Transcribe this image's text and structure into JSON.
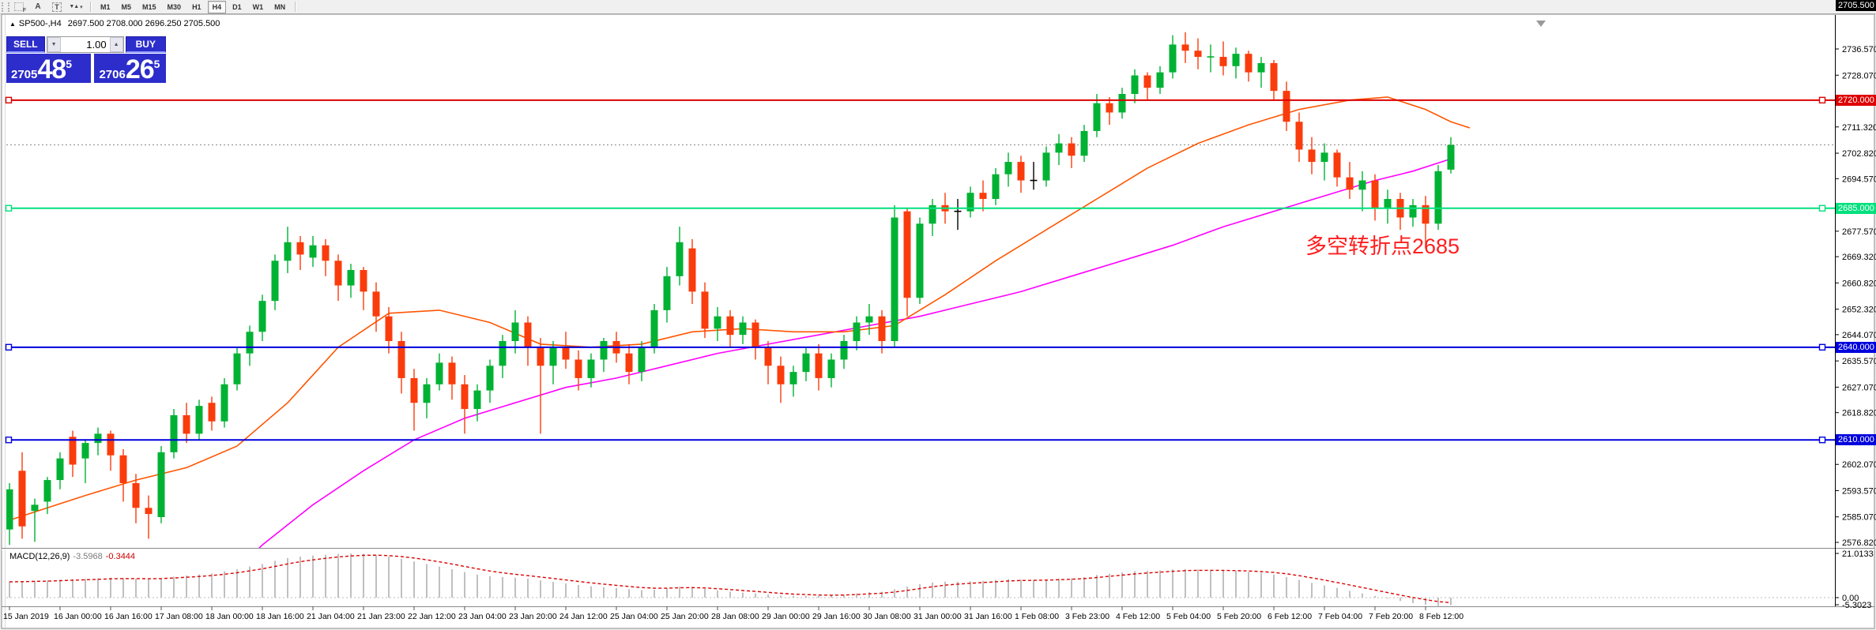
{
  "toolbar": {
    "tools": [
      {
        "name": "fibonacci-tool",
        "label": "F"
      },
      {
        "name": "text-tool",
        "label": "A"
      },
      {
        "name": "text-label-tool",
        "label": "T"
      },
      {
        "name": "arrows-tool",
        "label": "▼▲"
      }
    ],
    "timeframes": [
      "M1",
      "M5",
      "M15",
      "M30",
      "H1",
      "H4",
      "D1",
      "W1",
      "MN"
    ],
    "active_timeframe": "H4"
  },
  "chart_header": {
    "symbol": "SP500-,H4",
    "ohlc": "2697.500 2708.000 2696.250 2705.500",
    "marker_glyph": "▲"
  },
  "trade_panel": {
    "sell_label": "SELL",
    "buy_label": "BUY",
    "lot": "1.00",
    "spinner_down_glyph": "▼",
    "spinner_up_glyph": "▲",
    "sell": {
      "small": "2705",
      "big": "48",
      "sup": "5"
    },
    "buy": {
      "small": "2706",
      "big": "26",
      "sup": "5"
    }
  },
  "annotation": {
    "text": "多空转折点2685",
    "color": "#ff1f1f"
  },
  "macd_panel": {
    "label": "MACD(12,26,9)",
    "value_main": "-3.5968",
    "value_signal": "-0.3444",
    "scale_labels": [
      "21.0133",
      "0.00",
      "-5.3023"
    ]
  },
  "current_price": {
    "value": 2705.5,
    "label": "2705.500"
  },
  "y_axis": {
    "ticks": [
      "2736.570",
      "2728.070",
      "2711.320",
      "2702.820",
      "2694.570",
      "2677.570",
      "2669.320",
      "2660.820",
      "2652.320",
      "2644.070",
      "2635.570",
      "2627.070",
      "2618.820",
      "2602.070",
      "2593.570",
      "2585.070",
      "2576.820"
    ]
  },
  "x_axis": {
    "labels": [
      "15 Jan 2019",
      "16 Jan 00:00",
      "16 Jan 16:00",
      "17 Jan 08:00",
      "18 Jan 00:00",
      "18 Jan 16:00",
      "21 Jan 04:00",
      "21 Jan 23:00",
      "22 Jan 12:00",
      "23 Jan 04:00",
      "23 Jan 20:00",
      "24 Jan 12:00",
      "25 Jan 04:00",
      "25 Jan 20:00",
      "28 Jan 08:00",
      "29 Jan 00:00",
      "29 Jan 16:00",
      "30 Jan 08:00",
      "31 Jan 00:00",
      "31 Jan 16:00",
      "1 Feb 08:00",
      "3 Feb 23:00",
      "4 Feb 12:00",
      "5 Feb 04:00",
      "5 Feb 20:00",
      "6 Feb 12:00",
      "7 Feb 04:00",
      "7 Feb 20:00",
      "8 Feb 12:00"
    ]
  },
  "colors": {
    "candle_up": "#00b233",
    "candle_down": "#fa3c0c",
    "doji_black": "#000000",
    "ma_fast": "#ff5500",
    "ma_slow": "#ff00ff",
    "level_red": "#dd0000",
    "level_green": "#00e07d",
    "level_blue": "#0000dd",
    "macd_hist": "#c0c0c0",
    "macd_signal": "#dd0000",
    "current_line": "#888888",
    "panel_blue": "#2d2dcb"
  },
  "chart_data": {
    "type": "candlestick",
    "symbol": "SP500-,H4",
    "timeframe": "H4",
    "y_range": [
      2576.82,
      2736.57
    ],
    "macd_range": [
      -5.3023,
      21.0133
    ],
    "levels": [
      {
        "price": 2720,
        "label": "2720.000",
        "color": "#dd0000"
      },
      {
        "price": 2685,
        "label": "2685.000",
        "color": "#00e07d"
      },
      {
        "price": 2640,
        "label": "2640.000",
        "color": "#0000dd"
      },
      {
        "price": 2610,
        "label": "2610.000",
        "color": "#0000dd"
      }
    ],
    "doji_black": [
      75,
      81
    ],
    "candles": [
      [
        2581,
        2596,
        2576,
        2594
      ],
      [
        2600,
        2606,
        2578,
        2582
      ],
      [
        2587,
        2591,
        2577,
        2589
      ],
      [
        2590,
        2598,
        2586,
        2597
      ],
      [
        2597,
        2606,
        2594,
        2604
      ],
      [
        2611,
        2613,
        2598,
        2602
      ],
      [
        2604,
        2610,
        2596,
        2609
      ],
      [
        2609,
        2614,
        2605,
        2612
      ],
      [
        2612,
        2613,
        2600,
        2605
      ],
      [
        2605,
        2607,
        2590,
        2596
      ],
      [
        2596,
        2599,
        2583,
        2588
      ],
      [
        2588,
        2592,
        2578,
        2586
      ],
      [
        2585,
        2608,
        2583,
        2606
      ],
      [
        2606,
        2620,
        2604,
        2618
      ],
      [
        2618,
        2622,
        2609,
        2612
      ],
      [
        2612,
        2623,
        2610,
        2621
      ],
      [
        2622,
        2624,
        2613,
        2616
      ],
      [
        2616,
        2630,
        2614,
        2628
      ],
      [
        2628,
        2640,
        2626,
        2638
      ],
      [
        2638,
        2647,
        2634,
        2645
      ],
      [
        2645,
        2657,
        2642,
        2655
      ],
      [
        2655,
        2670,
        2652,
        2668
      ],
      [
        2668,
        2679,
        2664,
        2674
      ],
      [
        2674,
        2676,
        2665,
        2670
      ],
      [
        2669,
        2676,
        2666,
        2673
      ],
      [
        2673,
        2675,
        2663,
        2668
      ],
      [
        2668,
        2670,
        2655,
        2660
      ],
      [
        2660,
        2667,
        2656,
        2665
      ],
      [
        2665,
        2666,
        2652,
        2658
      ],
      [
        2658,
        2661,
        2645,
        2650
      ],
      [
        2650,
        2653,
        2638,
        2642
      ],
      [
        2642,
        2645,
        2625,
        2630
      ],
      [
        2630,
        2633,
        2613,
        2622
      ],
      [
        2622,
        2630,
        2617,
        2628
      ],
      [
        2628,
        2638,
        2626,
        2635
      ],
      [
        2635,
        2637,
        2623,
        2628
      ],
      [
        2628,
        2631,
        2612,
        2620
      ],
      [
        2620,
        2628,
        2616,
        2626
      ],
      [
        2626,
        2636,
        2622,
        2634
      ],
      [
        2634,
        2644,
        2630,
        2642
      ],
      [
        2642,
        2652,
        2638,
        2648
      ],
      [
        2648,
        2650,
        2634,
        2640
      ],
      [
        2640,
        2643,
        2612,
        2634
      ],
      [
        2634,
        2642,
        2628,
        2640
      ],
      [
        2640,
        2645,
        2633,
        2636
      ],
      [
        2636,
        2639,
        2626,
        2630
      ],
      [
        2630,
        2638,
        2627,
        2636
      ],
      [
        2636,
        2643,
        2632,
        2642
      ],
      [
        2642,
        2645,
        2635,
        2638
      ],
      [
        2638,
        2641,
        2628,
        2632
      ],
      [
        2632,
        2642,
        2629,
        2640
      ],
      [
        2640,
        2654,
        2638,
        2652
      ],
      [
        2652,
        2666,
        2648,
        2663
      ],
      [
        2663,
        2679,
        2660,
        2674
      ],
      [
        2672,
        2675,
        2654,
        2658
      ],
      [
        2658,
        2661,
        2643,
        2646
      ],
      [
        2646,
        2653,
        2642,
        2650
      ],
      [
        2650,
        2652,
        2640,
        2644
      ],
      [
        2644,
        2650,
        2641,
        2648
      ],
      [
        2648,
        2649,
        2636,
        2640
      ],
      [
        2640,
        2642,
        2628,
        2634
      ],
      [
        2634,
        2637,
        2622,
        2628
      ],
      [
        2628,
        2634,
        2624,
        2632
      ],
      [
        2632,
        2640,
        2629,
        2638
      ],
      [
        2638,
        2641,
        2626,
        2630
      ],
      [
        2630,
        2638,
        2627,
        2636
      ],
      [
        2636,
        2644,
        2633,
        2642
      ],
      [
        2642,
        2650,
        2639,
        2648
      ],
      [
        2648,
        2654,
        2644,
        2650
      ],
      [
        2650,
        2652,
        2638,
        2642
      ],
      [
        2642,
        2686,
        2640,
        2682
      ],
      [
        2684,
        2685,
        2650,
        2656
      ],
      [
        2656,
        2682,
        2654,
        2680
      ],
      [
        2680,
        2688,
        2676,
        2686
      ],
      [
        2686,
        2690,
        2680,
        2684
      ],
      [
        2684,
        2688,
        2678,
        2684
      ],
      [
        2684,
        2692,
        2682,
        2690
      ],
      [
        2690,
        2694,
        2684,
        2688
      ],
      [
        2688,
        2698,
        2686,
        2696
      ],
      [
        2696,
        2703,
        2692,
        2700
      ],
      [
        2700,
        2702,
        2690,
        2694
      ],
      [
        2694,
        2700,
        2691,
        2694
      ],
      [
        2694,
        2705,
        2692,
        2703
      ],
      [
        2703,
        2709,
        2699,
        2706
      ],
      [
        2706,
        2708,
        2698,
        2702
      ],
      [
        2702,
        2712,
        2700,
        2710
      ],
      [
        2710,
        2722,
        2708,
        2719
      ],
      [
        2719,
        2721,
        2712,
        2716
      ],
      [
        2716,
        2724,
        2714,
        2722
      ],
      [
        2722,
        2730,
        2719,
        2728
      ],
      [
        2728,
        2729,
        2720,
        2724
      ],
      [
        2724,
        2731,
        2722,
        2729
      ],
      [
        2729,
        2741,
        2727,
        2738
      ],
      [
        2738,
        2742,
        2732,
        2736
      ],
      [
        2736,
        2740,
        2730,
        2734
      ],
      [
        2734,
        2738,
        2729,
        2734
      ],
      [
        2734,
        2739,
        2728,
        2731
      ],
      [
        2731,
        2737,
        2727,
        2735
      ],
      [
        2735,
        2736,
        2726,
        2729
      ],
      [
        2729,
        2734,
        2724,
        2732
      ],
      [
        2732,
        2733,
        2720,
        2723
      ],
      [
        2723,
        2726,
        2710,
        2713
      ],
      [
        2713,
        2716,
        2700,
        2704
      ],
      [
        2704,
        2708,
        2696,
        2700
      ],
      [
        2700,
        2706,
        2694,
        2703
      ],
      [
        2703,
        2704,
        2692,
        2695
      ],
      [
        2695,
        2700,
        2688,
        2691
      ],
      [
        2691,
        2697,
        2684,
        2694
      ],
      [
        2694,
        2696,
        2681,
        2685
      ],
      [
        2685,
        2691,
        2680,
        2688
      ],
      [
        2688,
        2690,
        2678,
        2682
      ],
      [
        2682,
        2688,
        2679,
        2686
      ],
      [
        2686,
        2689,
        2672,
        2680
      ],
      [
        2680,
        2699,
        2678,
        2697
      ],
      [
        2697.5,
        2708,
        2696.25,
        2705.5
      ]
    ],
    "ma_fast_points": [
      [
        0,
        2584
      ],
      [
        6,
        2592
      ],
      [
        10,
        2597
      ],
      [
        14,
        2601
      ],
      [
        18,
        2608
      ],
      [
        22,
        2622
      ],
      [
        26,
        2640
      ],
      [
        30,
        2651
      ],
      [
        34,
        2652
      ],
      [
        38,
        2648
      ],
      [
        42,
        2641
      ],
      [
        46,
        2640
      ],
      [
        50,
        2641
      ],
      [
        54,
        2645
      ],
      [
        58,
        2646
      ],
      [
        62,
        2645
      ],
      [
        66,
        2645
      ],
      [
        70,
        2647
      ],
      [
        74,
        2657
      ],
      [
        78,
        2668
      ],
      [
        82,
        2678
      ],
      [
        86,
        2688
      ],
      [
        90,
        2698
      ],
      [
        94,
        2706
      ],
      [
        98,
        2712
      ],
      [
        102,
        2717
      ],
      [
        106,
        2720
      ],
      [
        109,
        2721
      ],
      [
        112,
        2717
      ],
      [
        114,
        2713
      ],
      [
        115.5,
        2711
      ]
    ],
    "ma_slow_points": [
      [
        13,
        2548
      ],
      [
        16,
        2560
      ],
      [
        20,
        2576
      ],
      [
        24,
        2589
      ],
      [
        28,
        2600
      ],
      [
        32,
        2610
      ],
      [
        36,
        2617
      ],
      [
        40,
        2622
      ],
      [
        44,
        2627
      ],
      [
        48,
        2630
      ],
      [
        52,
        2634
      ],
      [
        56,
        2638
      ],
      [
        60,
        2641
      ],
      [
        64,
        2644
      ],
      [
        68,
        2647
      ],
      [
        72,
        2650
      ],
      [
        76,
        2654
      ],
      [
        80,
        2658
      ],
      [
        84,
        2663
      ],
      [
        88,
        2668
      ],
      [
        92,
        2673
      ],
      [
        96,
        2679
      ],
      [
        100,
        2684
      ],
      [
        104,
        2689
      ],
      [
        108,
        2694
      ],
      [
        111,
        2697
      ],
      [
        114,
        2701
      ]
    ],
    "macd_main": [
      7.5,
      7.8,
      8.0,
      8.2,
      8.5,
      8.8,
      9.0,
      9.2,
      9.5,
      9.3,
      9.0,
      8.8,
      9.2,
      10.0,
      10.5,
      11.0,
      11.5,
      12.5,
      13.5,
      14.8,
      16.0,
      17.5,
      18.8,
      19.5,
      20.0,
      20.4,
      20.8,
      21.0,
      20.8,
      20.3,
      19.5,
      18.5,
      17.2,
      16.0,
      14.8,
      13.5,
      12.2,
      11.0,
      10.2,
      9.8,
      9.5,
      9.0,
      8.2,
      7.5,
      6.8,
      6.0,
      5.4,
      5.0,
      4.6,
      4.0,
      3.6,
      3.8,
      4.4,
      5.2,
      5.0,
      4.2,
      3.4,
      2.8,
      2.4,
      2.0,
      1.5,
      1.0,
      0.8,
      0.9,
      0.8,
      1.0,
      1.4,
      2.0,
      2.6,
      2.8,
      4.0,
      5.2,
      6.4,
      7.2,
      7.6,
      7.6,
      7.8,
      8.0,
      8.4,
      8.8,
      8.6,
      8.4,
      8.6,
      9.0,
      9.2,
      9.8,
      10.8,
      11.4,
      12.0,
      12.6,
      12.8,
      13.0,
      13.4,
      13.6,
      13.4,
      13.0,
      12.8,
      12.6,
      12.2,
      11.8,
      11.0,
      9.8,
      8.4,
      7.0,
      5.8,
      4.6,
      3.2,
      2.0,
      0.8,
      -0.4,
      -1.6,
      -2.6,
      -3.4,
      -4.0,
      -3.6
    ]
  }
}
